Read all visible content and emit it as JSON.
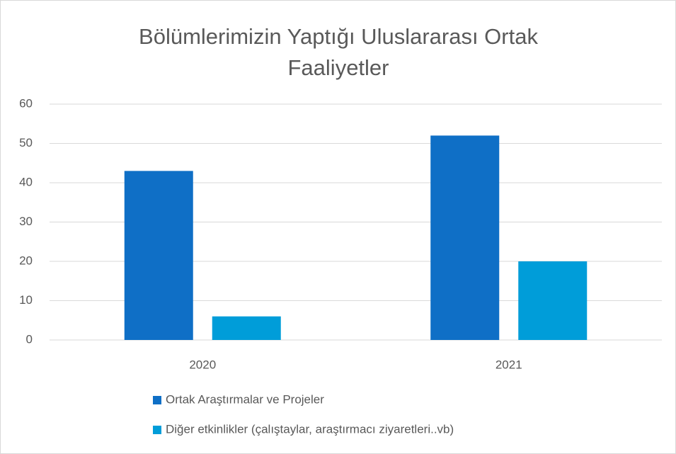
{
  "chart_data": {
    "type": "bar",
    "title": "Bölümlerimizin Yaptığı Uluslararası Ortak Faaliyetler",
    "categories": [
      "2020",
      "2021"
    ],
    "series": [
      {
        "name": "Ortak Araştırmalar ve Projeler",
        "color": "#0f6fc6",
        "values": [
          43,
          52
        ]
      },
      {
        "name": "Diğer etkinlikler (çalıştaylar, araştırmacı ziyaretleri..vb)",
        "color": "#009dd9",
        "values": [
          6,
          20
        ]
      }
    ],
    "ylim": [
      0,
      60
    ],
    "yticks": [
      0,
      10,
      20,
      30,
      40,
      50,
      60
    ],
    "grid": true,
    "legend": "bottom"
  }
}
